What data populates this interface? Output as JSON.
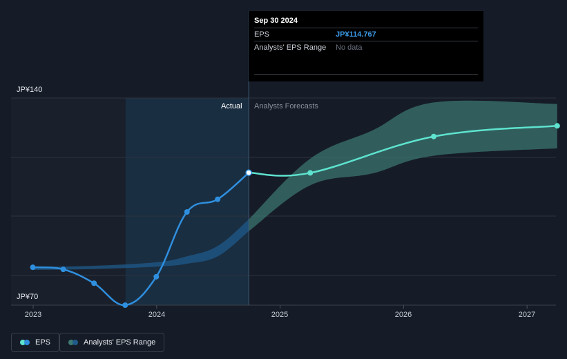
{
  "tooltip": {
    "date": "Sep 30 2024",
    "rows": [
      {
        "key": "EPS",
        "value": "JP¥114.767"
      },
      {
        "key": "Analysts' EPS Range",
        "value": "No data"
      }
    ]
  },
  "labels": {
    "actual": "Actual",
    "forecast": "Analysts Forecasts",
    "y_top": "JP¥140",
    "y_bottom": "JP¥70"
  },
  "legend": {
    "eps": "EPS",
    "range": "Analysts' EPS Range"
  },
  "colors": {
    "eps_actual": "#2f8fdf",
    "eps_forecast": "#5ee3cf",
    "range_actual": "#1f5a8a",
    "range_forecast": "#3d7a73",
    "background": "#161c27"
  },
  "chart_data": {
    "type": "line",
    "x_ticks": [
      "2023",
      "2024",
      "2025",
      "2026",
      "2027"
    ],
    "ylim": [
      70,
      140
    ],
    "y_ticks": [
      70,
      140
    ],
    "divider_date": "2024-09-30",
    "series": [
      {
        "name": "EPS",
        "points": [
          {
            "x": "2022-12-31",
            "y": 82.8
          },
          {
            "x": "2023-03-31",
            "y": 82.1
          },
          {
            "x": "2023-06-30",
            "y": 77.4
          },
          {
            "x": "2023-09-30",
            "y": 70.0
          },
          {
            "x": "2023-12-31",
            "y": 79.6
          },
          {
            "x": "2024-03-31",
            "y": 101.5
          },
          {
            "x": "2024-06-30",
            "y": 105.8
          },
          {
            "x": "2024-09-30",
            "y": 114.767
          },
          {
            "x": "2025-03-31",
            "y": 114.7
          },
          {
            "x": "2026-03-31",
            "y": 127.0
          },
          {
            "x": "2027-03-31",
            "y": 130.6
          }
        ]
      },
      {
        "name": "Analysts' EPS Range",
        "low": [
          {
            "x": "2022-12-31",
            "y": 81.9
          },
          {
            "x": "2023-06-30",
            "y": 82.2
          },
          {
            "x": "2023-12-31",
            "y": 83.0
          },
          {
            "x": "2024-03-31",
            "y": 84.0
          },
          {
            "x": "2024-06-30",
            "y": 86.5
          },
          {
            "x": "2024-09-30",
            "y": 95.0
          },
          {
            "x": "2025-03-31",
            "y": 110.5
          },
          {
            "x": "2025-09-30",
            "y": 114.5
          },
          {
            "x": "2026-03-31",
            "y": 120.5
          },
          {
            "x": "2027-03-31",
            "y": 123.0
          }
        ],
        "high": [
          {
            "x": "2022-12-31",
            "y": 82.9
          },
          {
            "x": "2023-06-30",
            "y": 83.3
          },
          {
            "x": "2023-12-31",
            "y": 84.5
          },
          {
            "x": "2024-03-31",
            "y": 86.5
          },
          {
            "x": "2024-06-30",
            "y": 90.0
          },
          {
            "x": "2024-09-30",
            "y": 99.0
          },
          {
            "x": "2025-03-31",
            "y": 119.5
          },
          {
            "x": "2025-09-30",
            "y": 129.0
          },
          {
            "x": "2026-03-31",
            "y": 138.5
          },
          {
            "x": "2027-03-31",
            "y": 138.0
          }
        ]
      }
    ]
  }
}
